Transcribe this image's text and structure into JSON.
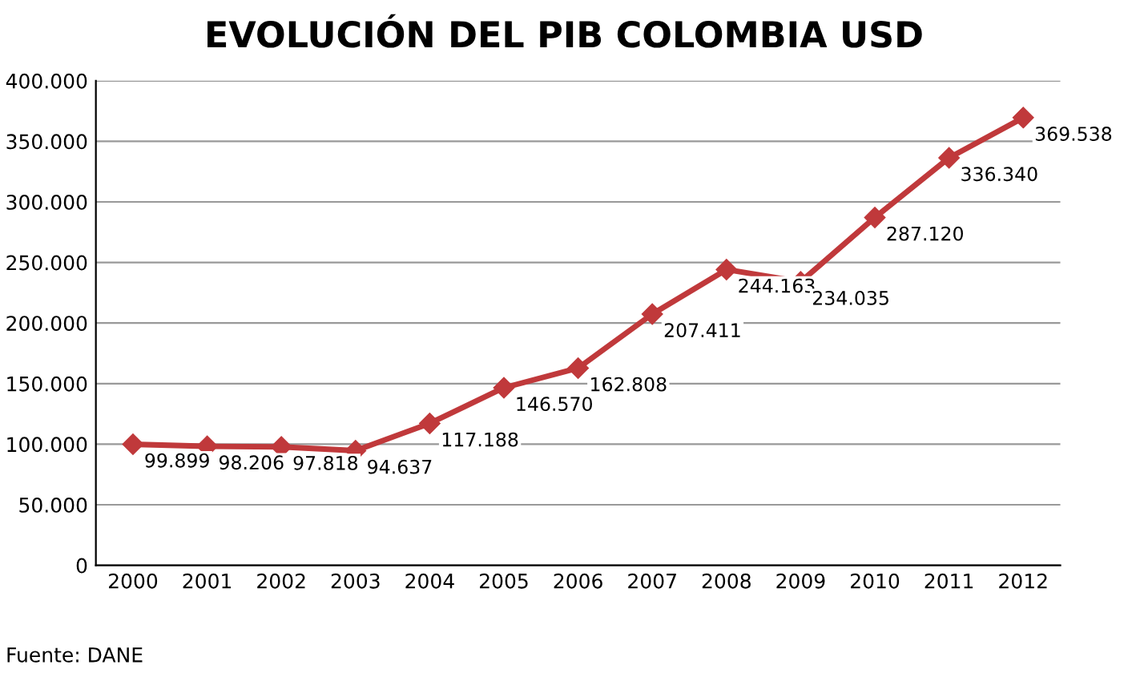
{
  "chart_data": {
    "type": "line",
    "title": "EVOLUCIÓN DEL PIB COLOMBIA USD",
    "categories": [
      "2000",
      "2001",
      "2002",
      "2003",
      "2004",
      "2005",
      "2006",
      "2007",
      "2008",
      "2009",
      "2010",
      "2011",
      "2012"
    ],
    "series": [
      {
        "color": "#c0393b",
        "values": [
          99899,
          98206,
          97818,
          94637,
          117188,
          146570,
          162808,
          207411,
          244163,
          234035,
          287120,
          336340,
          369538
        ],
        "value_labels": [
          "99.899",
          "98.206",
          "97.818",
          "94.637",
          "117.188",
          "146.570",
          "162.808",
          "207.411",
          "244.163",
          "234.035",
          "287.120",
          "336.340",
          "369.538"
        ]
      }
    ],
    "ylim": [
      0,
      400000
    ],
    "yticks": [
      0,
      {
        "value": 50000,
        "label": "50.000"
      },
      {
        "value": 100000,
        "label": "100.000"
      },
      {
        "value": 150000,
        "label": "150.000"
      },
      {
        "value": 200000,
        "label": "200.000"
      },
      {
        "value": 250000,
        "label": "250.000"
      },
      {
        "value": 300000,
        "label": "300.000"
      },
      {
        "value": 350000,
        "label": "350.000"
      },
      {
        "value": 400000,
        "label": "400.000"
      }
    ],
    "grid": "y",
    "marker": "diamond",
    "line_style": "solid",
    "annotations": [
      "Fuente: DANE"
    ]
  }
}
